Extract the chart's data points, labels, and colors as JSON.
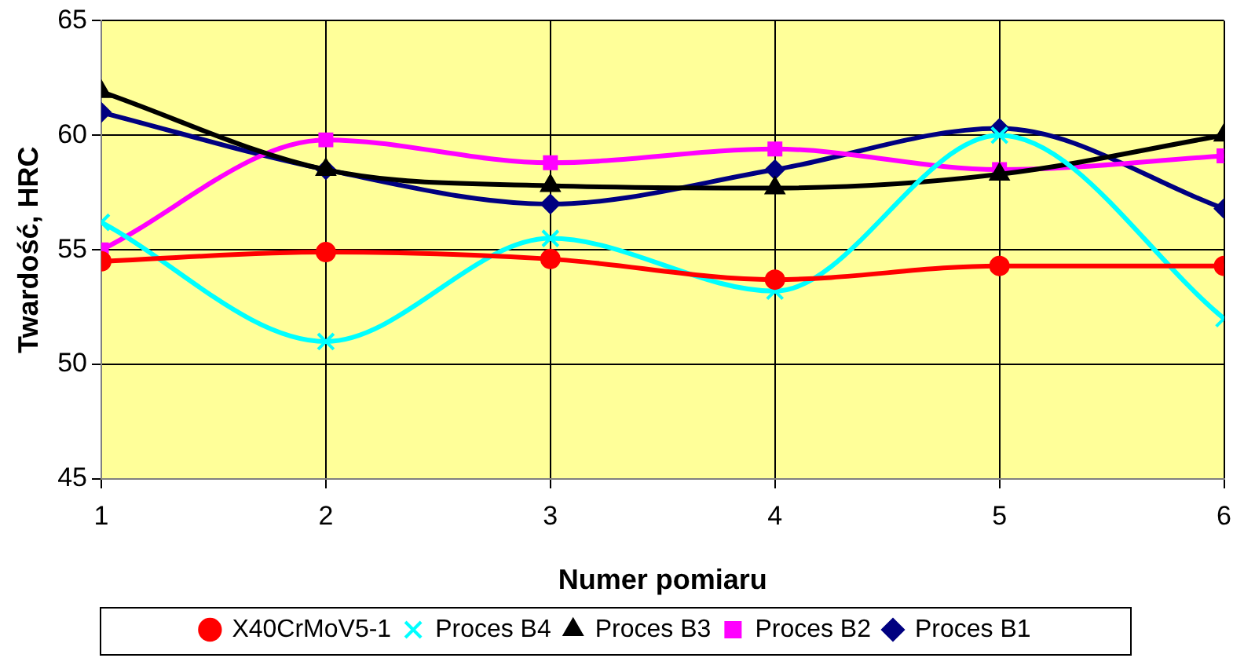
{
  "chart_data": {
    "type": "line",
    "xlabel": "Numer pomiaru",
    "ylabel": "Twardość, HRC",
    "x": [
      1,
      2,
      3,
      4,
      5,
      6
    ],
    "xlim": [
      1,
      6
    ],
    "xticks": [
      1,
      2,
      3,
      4,
      5,
      6
    ],
    "ylim": [
      45,
      65
    ],
    "yticks": [
      45,
      50,
      55,
      60,
      65
    ],
    "grid": true,
    "legend": "bottom",
    "series": [
      {
        "name": "Proces B1",
        "color": "#000080",
        "marker": "diamond",
        "values": [
          61,
          58.5,
          57,
          58.5,
          60.3,
          56.8
        ]
      },
      {
        "name": "Proces B2",
        "color": "#ff00ff",
        "marker": "square",
        "values": [
          55,
          59.8,
          58.8,
          59.4,
          58.5,
          59.1
        ]
      },
      {
        "name": "Proces B3",
        "color": "#000000",
        "marker": "triangle",
        "values": [
          61.9,
          58.5,
          57.8,
          57.7,
          58.3,
          60
        ]
      },
      {
        "name": "Proces B4",
        "color": "#00ffff",
        "marker": "cross",
        "values": [
          56.2,
          51,
          55.5,
          53.2,
          60,
          52
        ]
      },
      {
        "name": "X40CrMoV5-1",
        "color": "#ff0000",
        "marker": "circle",
        "values": [
          54.5,
          54.9,
          54.6,
          53.7,
          54.3,
          54.3
        ]
      }
    ]
  }
}
